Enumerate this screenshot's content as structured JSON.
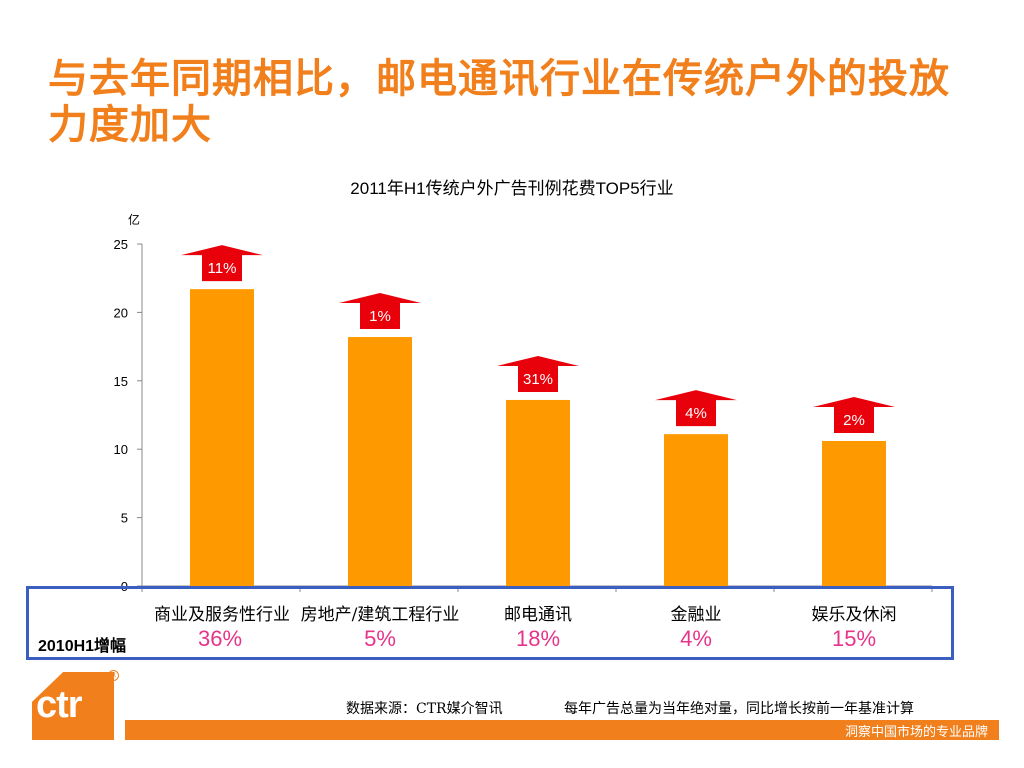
{
  "slide": {
    "title": "与去年同期相比，邮电通讯行业在传统户外的投放力度加大",
    "source": "数据来源：CTR媒介智讯",
    "note": "每年广告总量为当年绝对量，同比增长按前一年基准计算",
    "slogan": "洞察中国市场的专业品牌",
    "logo_text": "ctr"
  },
  "colors": {
    "accent": "#f07f1c",
    "bar": "#ff9900",
    "arrow": "#e8000b",
    "growth_text": "#e6348a",
    "box_border": "#3b5fc0"
  },
  "chart_data": {
    "type": "bar",
    "title": "2011年H1传统户外广告刊例花费TOP5行业",
    "unit_label": "亿",
    "categories": [
      "商业及服务性行业",
      "房地产/建筑工程行业",
      "邮电通讯",
      "金融业",
      "娱乐及休闲"
    ],
    "values": [
      21.7,
      18.2,
      13.6,
      11.1,
      10.6
    ],
    "yoy_2011": [
      "11%",
      "1%",
      "31%",
      "4%",
      "2%"
    ],
    "ylim": [
      0,
      25
    ],
    "yticks": [
      "0",
      "5",
      "10",
      "15",
      "20",
      "25"
    ],
    "yticks_values": [
      0,
      5,
      10,
      15,
      20,
      25
    ],
    "growth_row_label": "2010H1增幅",
    "growth_2010": [
      "36%",
      "5%",
      "18%",
      "4%",
      "15%"
    ]
  }
}
